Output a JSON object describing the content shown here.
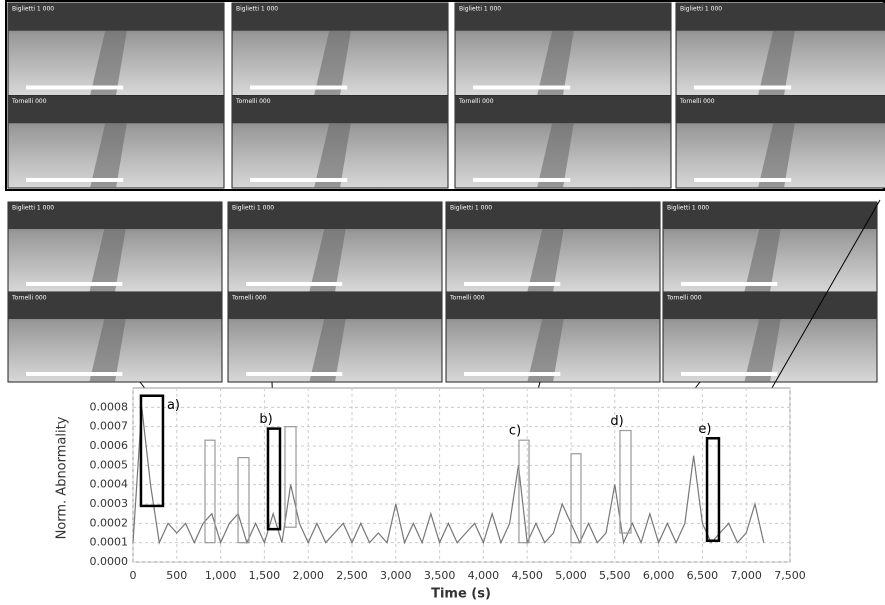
{
  "chart_data": {
    "type": "line",
    "camera_labels": [
      "Biglietti 1 000",
      "Tornelli 000"
    ],
    "xlabel": "Time (s)",
    "ylabel": "Norm. Abnormality",
    "xlim": [
      0,
      7500
    ],
    "ylim": [
      0,
      0.0009
    ],
    "xticks": [
      0,
      500,
      {
        "value": 1000,
        "label": "1,000"
      },
      {
        "value": 1500,
        "label": "1,500"
      },
      {
        "value": 2000,
        "label": "2,000"
      },
      {
        "value": 2500,
        "label": "2,500"
      },
      {
        "value": 3000,
        "label": "3,000"
      },
      {
        "value": 3500,
        "label": "3,500"
      },
      {
        "value": 4000,
        "label": "4,000"
      },
      {
        "value": 4500,
        "label": "4,500"
      },
      {
        "value": 5000,
        "label": "5,000"
      },
      {
        "value": 5500,
        "label": "5,500"
      },
      {
        "value": 6000,
        "label": "6,000"
      },
      {
        "value": 6500,
        "label": "6,500"
      },
      {
        "value": 7000,
        "label": "7,000"
      },
      {
        "value": 7500,
        "label": "7,500"
      }
    ],
    "yticks": [
      {
        "value": 0,
        "label": "0.0000"
      },
      {
        "value": 0.0001,
        "label": "0.0001"
      },
      {
        "value": 0.0002,
        "label": "0.0002"
      },
      {
        "value": 0.0003,
        "label": "0.0003"
      },
      {
        "value": 0.0004,
        "label": "0.0004"
      },
      {
        "value": 0.0005,
        "label": "0.0005"
      },
      {
        "value": 0.0006,
        "label": "0.0006"
      },
      {
        "value": 0.0007,
        "label": "0.0007"
      },
      {
        "value": 0.0008,
        "label": "0.0008"
      }
    ],
    "grid": true,
    "series": [
      {
        "color": "#777777",
        "x": [
          0,
          100,
          200,
          300,
          400,
          500,
          600,
          700,
          800,
          900,
          1000,
          1100,
          1200,
          1300,
          1400,
          1500,
          1600,
          1700,
          1800,
          1900,
          2000,
          2100,
          2200,
          2300,
          2400,
          2500,
          2600,
          2700,
          2800,
          2900,
          3000,
          3100,
          3200,
          3300,
          3400,
          3500,
          3600,
          3700,
          3800,
          3900,
          4000,
          4100,
          4200,
          4300,
          4400,
          4500,
          4600,
          4700,
          4800,
          4900,
          5000,
          5100,
          5200,
          5300,
          5400,
          5500,
          5600,
          5700,
          5800,
          5900,
          6000,
          6100,
          6200,
          6300,
          6400,
          6500,
          6600,
          6700,
          6800,
          6900,
          7000,
          7100,
          7200
        ],
        "values": [
          0.0001,
          0.0008,
          0.0004,
          0.0001,
          0.0002,
          0.00015,
          0.0002,
          0.0001,
          0.0002,
          0.00025,
          0.0001,
          0.0002,
          0.00025,
          0.0001,
          0.0002,
          0.0001,
          0.00025,
          0.0001,
          0.0004,
          0.0002,
          0.0001,
          0.0002,
          0.0001,
          0.00015,
          0.0002,
          0.0001,
          0.0002,
          0.0001,
          0.00015,
          0.0001,
          0.0003,
          0.0001,
          0.0002,
          0.0001,
          0.00025,
          0.0001,
          0.0002,
          0.0001,
          0.00015,
          0.0002,
          0.0001,
          0.00025,
          0.0001,
          0.0002,
          0.0005,
          0.0001,
          0.0002,
          0.0001,
          0.00015,
          0.0003,
          0.0002,
          0.0001,
          0.0002,
          0.0001,
          0.00015,
          0.0004,
          0.0001,
          0.0002,
          0.0001,
          0.00025,
          0.0001,
          0.0002,
          0.0001,
          0.0002,
          0.00055,
          0.0002,
          0.0001,
          0.00015,
          0.0002,
          0.0001,
          0.00015,
          0.0003,
          0.0001
        ]
      }
    ],
    "highlights": [
      {
        "label": "a)",
        "x": [
          91,
          342
        ],
        "y": [
          0.00029,
          0.00086
        ],
        "color": "#000000"
      },
      {
        "x": [
          822,
          936
        ],
        "y": [
          0.0001,
          0.00063
        ],
        "color": "#999999"
      },
      {
        "x": [
          1199,
          1324
        ],
        "y": [
          0.0001,
          0.00054
        ],
        "color": "#999999"
      },
      {
        "label": "b)",
        "x": [
          1541,
          1678
        ],
        "y": [
          0.00017,
          0.00069
        ],
        "color": "#000000"
      },
      {
        "x": [
          1735,
          1861
        ],
        "y": [
          0.00018,
          0.0007
        ],
        "color": "#999999"
      },
      {
        "label": "c)",
        "x": [
          4406,
          4521
        ],
        "y": [
          0.0001,
          0.00063
        ],
        "color": "#999999"
      },
      {
        "x": [
          5000,
          5114
        ],
        "y": [
          0.0001,
          0.00056
        ],
        "color": "#999999"
      },
      {
        "label": "d)",
        "x": [
          5559,
          5685
        ],
        "y": [
          0.00015,
          0.00068
        ],
        "color": "#999999"
      },
      {
        "label": "e)",
        "x": [
          6553,
          6689
        ],
        "y": [
          0.00011,
          0.00064
        ],
        "color": "#000000"
      }
    ]
  }
}
